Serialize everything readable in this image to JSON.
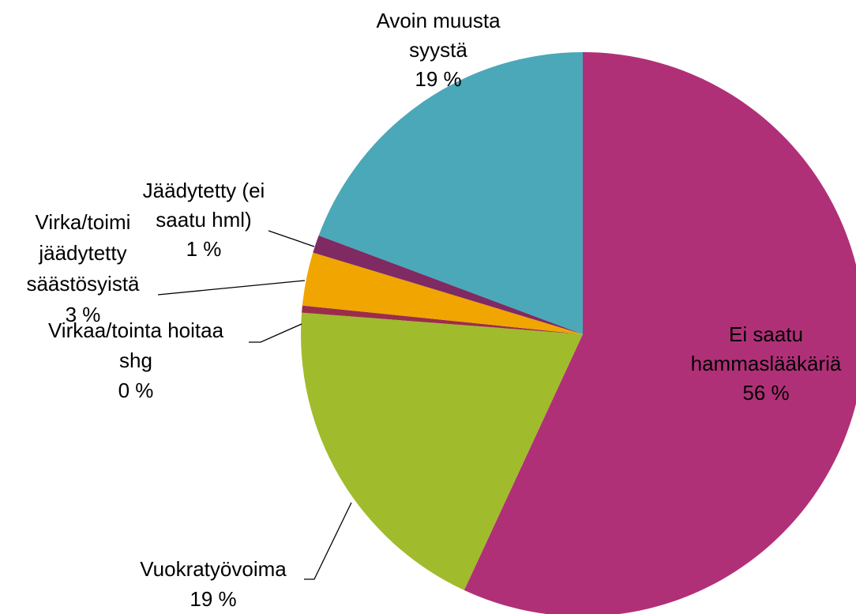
{
  "chart_data": {
    "type": "pie",
    "categories": [
      "Ei saatu hammaslääkäriä",
      "Vuokratyövoima",
      "Virkaa/tointa hoitaa shg",
      "Virka/toimi jäädytetty säästösyistä",
      "Jäädytetty (ei saatu hml)",
      "Avoin muusta syystä"
    ],
    "values": [
      56,
      19,
      0.4,
      3,
      1,
      19
    ],
    "value_labels": [
      "56 %",
      "19 %",
      "0 %",
      "3 %",
      "1 %",
      "19 %"
    ],
    "colors": [
      "#b03078",
      "#a0bb2c",
      "#9b2d4a",
      "#f0a500",
      "#7f2a62",
      "#4aa8b8"
    ]
  }
}
